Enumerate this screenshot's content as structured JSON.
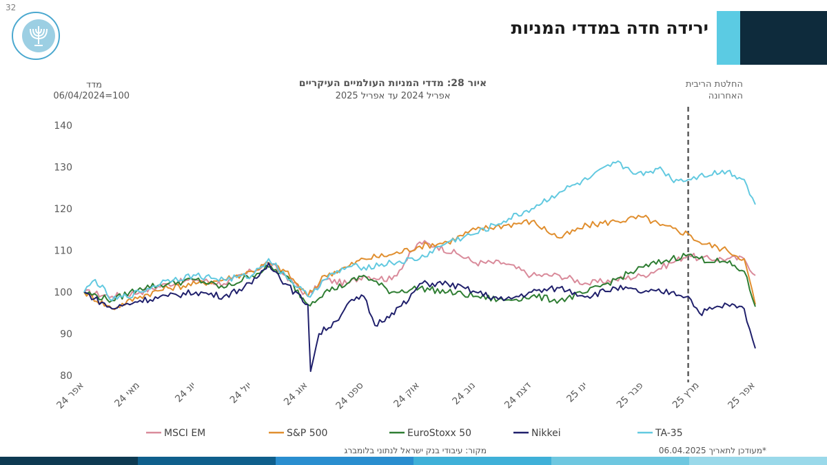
{
  "page_number": "32",
  "slide_title": "ירידה חדה במדדי המניות",
  "logo": {
    "name": "bank-of-israel-logo",
    "text": "BANK OF ISRAEL בנק ישראל"
  },
  "updated_note": "*מעודכן לתאריך 06.04.2025",
  "source_note": "מקור: עיבודי בנק ישראל לנתוני בלומברג",
  "colors": {
    "title_dark": "#0e2b3c",
    "title_light": "#5bcbe3",
    "footer": [
      "#0e3a52",
      "#0f5f8c",
      "#2a8ecf",
      "#3fb0d8",
      "#6ec7e0",
      "#9ad9ea"
    ]
  },
  "chart_data": {
    "type": "line",
    "title": "איור 28: מדדי המניות העולמיים העיקריים",
    "subtitle": "אפריל 2024 עד אפריל 2025",
    "ylabel": "מדד",
    "ylabel_unit": "06/04/2024=100",
    "ylim": [
      80,
      140
    ],
    "yticks": [
      80,
      90,
      100,
      110,
      120,
      130,
      140
    ],
    "x_tick_labels": [
      "אפר 24",
      "מאי 24",
      "יונ 24",
      "יול 24",
      "אוג 24",
      "ספט 24",
      "אוק 24",
      "נוב 24",
      "דצמ 24",
      "ינו 25",
      "פבר 25",
      "מרץ 25",
      "אפר 25"
    ],
    "x_months": [
      0,
      1,
      2,
      3,
      4,
      5,
      6,
      7,
      8,
      9,
      10,
      11,
      12
    ],
    "annotation": {
      "label": "החלטת הריבית האחרונה",
      "x_month": 10.8,
      "style": "dashed"
    },
    "grid": false,
    "legend_position": "bottom",
    "series": [
      {
        "name": "MSCI EM",
        "color": "#d98a9a",
        "points": [
          [
            0,
            100
          ],
          [
            0.5,
            99
          ],
          [
            1,
            100
          ],
          [
            1.5,
            102
          ],
          [
            2,
            103
          ],
          [
            2.5,
            102
          ],
          [
            3,
            105
          ],
          [
            3.3,
            107
          ],
          [
            3.6,
            104
          ],
          [
            4,
            99
          ],
          [
            4.3,
            103
          ],
          [
            4.7,
            102
          ],
          [
            5,
            104
          ],
          [
            5.5,
            103
          ],
          [
            6,
            112
          ],
          [
            6.3,
            111
          ],
          [
            6.7,
            109
          ],
          [
            7,
            107
          ],
          [
            7.5,
            107
          ],
          [
            8,
            104
          ],
          [
            8.5,
            104
          ],
          [
            9,
            102
          ],
          [
            9.5,
            103
          ],
          [
            10,
            104
          ],
          [
            10.5,
            107
          ],
          [
            10.8,
            109
          ],
          [
            11,
            108
          ],
          [
            11.5,
            108
          ],
          [
            11.8,
            108
          ],
          [
            12,
            104
          ]
        ]
      },
      {
        "name": "S&P 500",
        "color": "#e08e2e",
        "points": [
          [
            0,
            100
          ],
          [
            0.5,
            96
          ],
          [
            1,
            99
          ],
          [
            1.5,
            101
          ],
          [
            2,
            102
          ],
          [
            2.5,
            103
          ],
          [
            3,
            105
          ],
          [
            3.3,
            107
          ],
          [
            3.6,
            105
          ],
          [
            4,
            99
          ],
          [
            4.3,
            104
          ],
          [
            4.7,
            106
          ],
          [
            5,
            108
          ],
          [
            5.5,
            109
          ],
          [
            6,
            111
          ],
          [
            6.5,
            112
          ],
          [
            7,
            115
          ],
          [
            7.5,
            116
          ],
          [
            8,
            117
          ],
          [
            8.5,
            113
          ],
          [
            9,
            116
          ],
          [
            9.5,
            117
          ],
          [
            10,
            118
          ],
          [
            10.3,
            116
          ],
          [
            10.8,
            114
          ],
          [
            11,
            112
          ],
          [
            11.5,
            110
          ],
          [
            11.8,
            108
          ],
          [
            12,
            97
          ]
        ]
      },
      {
        "name": "EuroStoxx 50",
        "color": "#2e7d32",
        "points": [
          [
            0,
            100
          ],
          [
            0.5,
            98
          ],
          [
            1,
            101
          ],
          [
            1.5,
            102
          ],
          [
            2,
            103
          ],
          [
            2.5,
            101
          ],
          [
            3,
            104
          ],
          [
            3.3,
            106
          ],
          [
            3.6,
            104
          ],
          [
            4,
            97
          ],
          [
            4.3,
            100
          ],
          [
            4.7,
            102
          ],
          [
            5,
            104
          ],
          [
            5.5,
            100
          ],
          [
            6,
            101
          ],
          [
            6.5,
            100
          ],
          [
            7,
            99
          ],
          [
            7.5,
            98
          ],
          [
            8,
            99
          ],
          [
            8.5,
            98
          ],
          [
            9,
            100
          ],
          [
            9.5,
            103
          ],
          [
            10,
            106
          ],
          [
            10.5,
            108
          ],
          [
            10.8,
            109
          ],
          [
            11,
            108
          ],
          [
            11.5,
            107
          ],
          [
            11.8,
            105
          ],
          [
            12,
            96.5
          ]
        ]
      },
      {
        "name": "Nikkei",
        "color": "#1f1f6b",
        "points": [
          [
            0,
            100
          ],
          [
            0.5,
            96
          ],
          [
            1,
            98
          ],
          [
            1.5,
            99
          ],
          [
            2,
            100
          ],
          [
            2.5,
            99
          ],
          [
            3,
            102
          ],
          [
            3.3,
            107
          ],
          [
            3.6,
            102
          ],
          [
            4,
            97
          ],
          [
            4.05,
            81
          ],
          [
            4.2,
            90
          ],
          [
            4.5,
            93
          ],
          [
            4.7,
            97
          ],
          [
            5,
            99
          ],
          [
            5.2,
            92
          ],
          [
            5.5,
            95
          ],
          [
            5.8,
            98
          ],
          [
            6,
            102
          ],
          [
            6.5,
            102
          ],
          [
            7,
            100
          ],
          [
            7.5,
            98
          ],
          [
            8,
            100
          ],
          [
            8.5,
            101
          ],
          [
            9,
            99
          ],
          [
            9.5,
            101
          ],
          [
            10,
            100
          ],
          [
            10.5,
            100
          ],
          [
            10.8,
            99
          ],
          [
            11,
            95
          ],
          [
            11.5,
            97
          ],
          [
            11.8,
            96
          ],
          [
            12,
            86.5
          ]
        ]
      },
      {
        "name": "TA-35",
        "color": "#62c9e0",
        "points": [
          [
            0,
            100
          ],
          [
            0.2,
            103
          ],
          [
            0.5,
            98
          ],
          [
            1,
            100
          ],
          [
            1.5,
            103
          ],
          [
            2,
            104
          ],
          [
            2.5,
            103
          ],
          [
            3,
            104
          ],
          [
            3.3,
            108
          ],
          [
            3.6,
            104
          ],
          [
            4,
            99
          ],
          [
            4.3,
            103
          ],
          [
            4.7,
            106
          ],
          [
            5,
            106
          ],
          [
            5.5,
            107
          ],
          [
            6,
            108
          ],
          [
            6.5,
            112
          ],
          [
            7,
            114
          ],
          [
            7.5,
            117
          ],
          [
            8,
            120
          ],
          [
            8.5,
            124
          ],
          [
            9,
            127
          ],
          [
            9.5,
            131
          ],
          [
            10,
            128
          ],
          [
            10.3,
            130
          ],
          [
            10.5,
            127
          ],
          [
            10.8,
            127
          ],
          [
            11,
            128
          ],
          [
            11.5,
            129
          ],
          [
            11.8,
            127
          ],
          [
            12,
            121
          ]
        ]
      }
    ]
  }
}
